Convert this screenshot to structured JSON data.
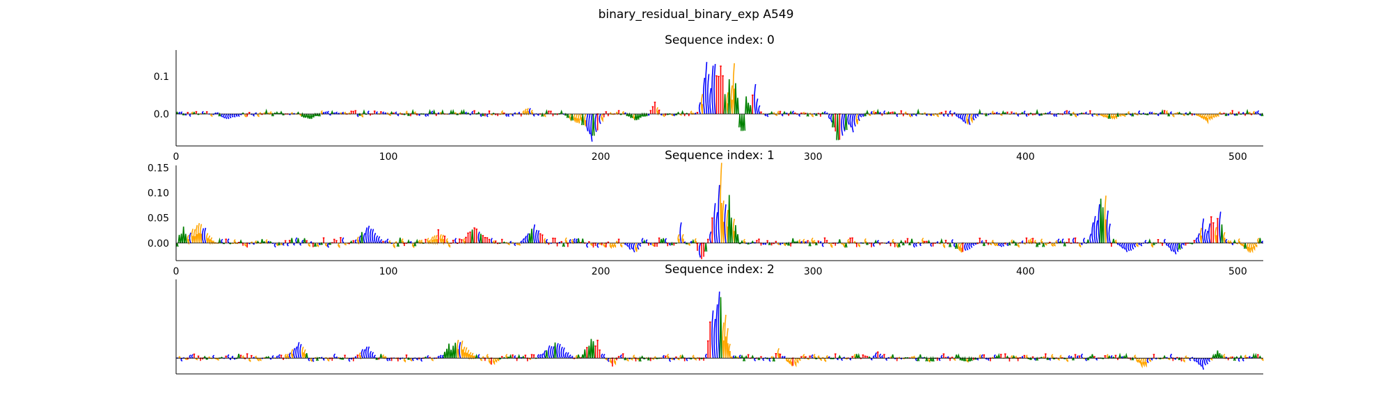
{
  "figure": {
    "suptitle": "binary_residual_binary_exp A549"
  },
  "colors": {
    "A": "#008000",
    "C": "#0000ff",
    "G": "#ffa500",
    "T": "#ff0000",
    "axis": "#000000"
  },
  "chart_data": [
    {
      "type": "sequence-logo",
      "title": "Sequence index: 0",
      "xlim": [
        0,
        512
      ],
      "ylim": [
        -0.085,
        0.17
      ],
      "x_ticks": [
        0,
        100,
        200,
        300,
        400,
        500
      ],
      "y_ticks": [
        0.0,
        0.1
      ],
      "y_tick_labels": [
        "0.0",
        "0.1"
      ],
      "show_x_ticks": true,
      "show_y_ticks": true,
      "baseline_amp": 0.008,
      "peaks": [
        {
          "x": 195,
          "h": -0.075,
          "w": 6,
          "letter": "C"
        },
        {
          "x": 188,
          "h": -0.03,
          "w": 5,
          "letter": "G"
        },
        {
          "x": 216,
          "h": -0.02,
          "w": 4,
          "letter": "A"
        },
        {
          "x": 249,
          "h": 0.13,
          "w": 3,
          "letter": "C"
        },
        {
          "x": 253,
          "h": 0.17,
          "w": 3,
          "letter": "C"
        },
        {
          "x": 256,
          "h": 0.16,
          "w": 2,
          "letter": "T"
        },
        {
          "x": 260,
          "h": 0.11,
          "w": 2,
          "letter": "G"
        },
        {
          "x": 262,
          "h": 0.14,
          "w": 2,
          "letter": "G"
        },
        {
          "x": 266,
          "h": -0.06,
          "w": 3,
          "letter": "A"
        },
        {
          "x": 268,
          "h": 0.05,
          "w": 2,
          "letter": "A"
        },
        {
          "x": 272,
          "h": 0.08,
          "w": 2,
          "letter": "C"
        },
        {
          "x": 312,
          "h": -0.08,
          "w": 5,
          "letter": "C"
        },
        {
          "x": 318,
          "h": -0.045,
          "w": 4,
          "letter": "C"
        },
        {
          "x": 311,
          "h": 0.06,
          "w": 1,
          "letter": "T"
        },
        {
          "x": 372,
          "h": -0.035,
          "w": 5,
          "letter": "C"
        },
        {
          "x": 24,
          "h": -0.015,
          "w": 6,
          "letter": "C"
        },
        {
          "x": 62,
          "h": -0.015,
          "w": 5,
          "letter": "A"
        },
        {
          "x": 165,
          "h": 0.02,
          "w": 3,
          "letter": "G"
        },
        {
          "x": 225,
          "h": 0.03,
          "w": 2,
          "letter": "T"
        },
        {
          "x": 485,
          "h": -0.02,
          "w": 5,
          "letter": "G"
        },
        {
          "x": 440,
          "h": -0.015,
          "w": 6,
          "letter": "G"
        }
      ]
    },
    {
      "type": "sequence-logo",
      "title": "Sequence index: 1",
      "xlim": [
        0,
        512
      ],
      "ylim": [
        -0.035,
        0.155
      ],
      "x_ticks": [
        0,
        100,
        200,
        300,
        400,
        500
      ],
      "y_ticks": [
        0.0,
        0.05,
        0.1,
        0.15
      ],
      "y_tick_labels": [
        "0.00",
        "0.05",
        "0.10",
        "0.15"
      ],
      "show_x_ticks": true,
      "show_y_ticks": true,
      "baseline_amp": 0.01,
      "peaks": [
        {
          "x": 10,
          "h": 0.045,
          "w": 7,
          "letter": "G"
        },
        {
          "x": 3,
          "h": 0.03,
          "w": 3,
          "letter": "A"
        },
        {
          "x": 90,
          "h": 0.035,
          "w": 7,
          "letter": "C"
        },
        {
          "x": 140,
          "h": 0.03,
          "w": 7,
          "letter": "T"
        },
        {
          "x": 168,
          "h": 0.035,
          "w": 6,
          "letter": "C"
        },
        {
          "x": 215,
          "h": -0.02,
          "w": 4,
          "letter": "C"
        },
        {
          "x": 237,
          "h": 0.045,
          "w": 1,
          "letter": "G"
        },
        {
          "x": 247,
          "h": -0.035,
          "w": 3,
          "letter": "T"
        },
        {
          "x": 256,
          "h": 0.15,
          "w": 3,
          "letter": "G"
        },
        {
          "x": 253,
          "h": 0.08,
          "w": 2,
          "letter": "C"
        },
        {
          "x": 260,
          "h": 0.1,
          "w": 2,
          "letter": "G"
        },
        {
          "x": 262,
          "h": 0.06,
          "w": 2,
          "letter": "A"
        },
        {
          "x": 435,
          "h": 0.1,
          "w": 3,
          "letter": "G"
        },
        {
          "x": 432,
          "h": 0.06,
          "w": 2,
          "letter": "C"
        },
        {
          "x": 437,
          "h": 0.11,
          "w": 2,
          "letter": "A"
        },
        {
          "x": 448,
          "h": -0.02,
          "w": 5,
          "letter": "C"
        },
        {
          "x": 487,
          "h": 0.065,
          "w": 3,
          "letter": "T"
        },
        {
          "x": 483,
          "h": 0.045,
          "w": 3,
          "letter": "C"
        },
        {
          "x": 491,
          "h": 0.07,
          "w": 2,
          "letter": "G"
        },
        {
          "x": 470,
          "h": -0.025,
          "w": 4,
          "letter": "C"
        },
        {
          "x": 505,
          "h": -0.02,
          "w": 4,
          "letter": "G"
        },
        {
          "x": 123,
          "h": 0.025,
          "w": 5,
          "letter": "G"
        },
        {
          "x": 370,
          "h": -0.02,
          "w": 6,
          "letter": "C"
        }
      ]
    },
    {
      "type": "sequence-logo",
      "title": "Sequence index: 2",
      "xlim": [
        0,
        512
      ],
      "ylim": [
        -0.2,
        1.0
      ],
      "x_ticks": [],
      "y_ticks": [],
      "y_tick_labels": [],
      "show_x_ticks": false,
      "show_y_ticks": false,
      "baseline_amp": 0.05,
      "peaks": [
        {
          "x": 57,
          "h": 0.22,
          "w": 5,
          "letter": "C"
        },
        {
          "x": 89,
          "h": 0.18,
          "w": 4,
          "letter": "C"
        },
        {
          "x": 133,
          "h": 0.25,
          "w": 7,
          "letter": "G"
        },
        {
          "x": 128,
          "h": 0.18,
          "w": 3,
          "letter": "A"
        },
        {
          "x": 178,
          "h": 0.22,
          "w": 8,
          "letter": "C"
        },
        {
          "x": 195,
          "h": 0.26,
          "w": 4,
          "letter": "A"
        },
        {
          "x": 198,
          "h": 0.22,
          "w": 1,
          "letter": "T"
        },
        {
          "x": 252,
          "h": 0.75,
          "w": 2,
          "letter": "T"
        },
        {
          "x": 255,
          "h": 0.98,
          "w": 3,
          "letter": "C"
        },
        {
          "x": 258,
          "h": 0.6,
          "w": 2,
          "letter": "G"
        },
        {
          "x": 290,
          "h": -0.12,
          "w": 3,
          "letter": "G"
        },
        {
          "x": 283,
          "h": 0.12,
          "w": 1,
          "letter": "T"
        },
        {
          "x": 330,
          "h": 0.1,
          "w": 2,
          "letter": "C"
        },
        {
          "x": 455,
          "h": -0.12,
          "w": 4,
          "letter": "G"
        },
        {
          "x": 483,
          "h": -0.14,
          "w": 4,
          "letter": "C"
        },
        {
          "x": 490,
          "h": 0.1,
          "w": 2,
          "letter": "A"
        },
        {
          "x": 205,
          "h": -0.1,
          "w": 2,
          "letter": "T"
        },
        {
          "x": 148,
          "h": -0.08,
          "w": 4,
          "letter": "G"
        },
        {
          "x": 372,
          "h": -0.06,
          "w": 5,
          "letter": "A"
        }
      ]
    }
  ]
}
